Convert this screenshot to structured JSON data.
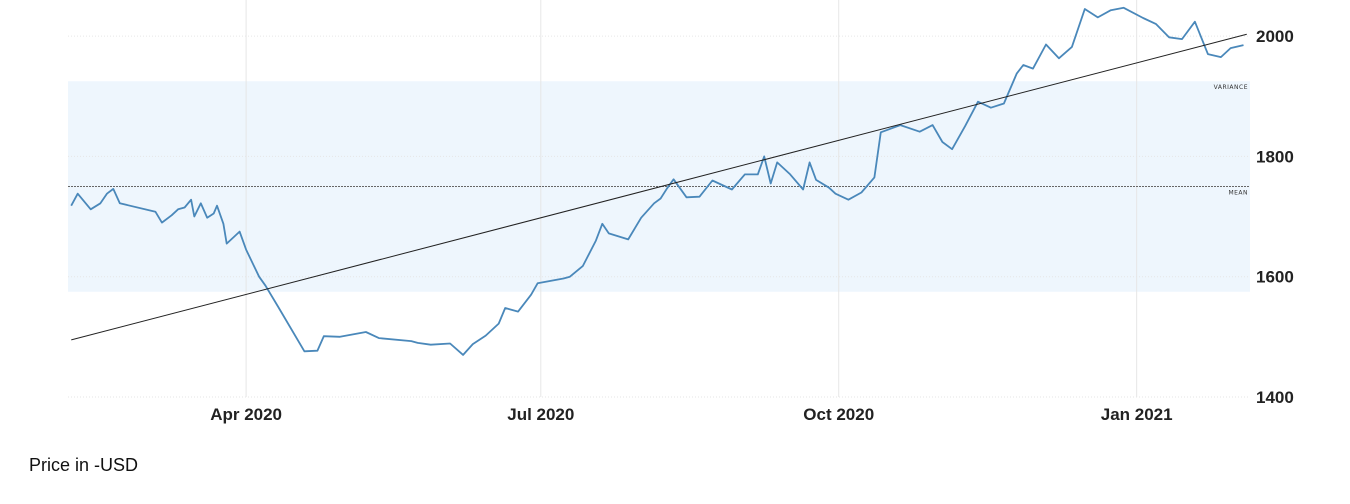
{
  "chart_data": {
    "type": "line",
    "units_note": "Price in -USD",
    "x_tick_labels": [
      "Apr 2020",
      "Jul 2020",
      "Oct 2020",
      "Jan 2021"
    ],
    "x_ticks": [
      "2020-04-01",
      "2020-07-01",
      "2020-10-01",
      "2021-01-01"
    ],
    "xlim": [
      "2020-02-06",
      "2021-02-05"
    ],
    "y_tick_labels": [
      "2000",
      "1800",
      "1600",
      "1400"
    ],
    "y_ticks": [
      2000,
      1800,
      1600,
      1400
    ],
    "ylim": [
      1400,
      2060
    ],
    "grid": true,
    "band": {
      "label": "VARIANCE",
      "from": 1575,
      "to": 1925
    },
    "mean_line": {
      "label": "MEAN",
      "value": 1750
    },
    "trend_line": {
      "x": [
        "2020-02-07",
        "2021-02-04"
      ],
      "y": [
        1495,
        2003
      ]
    },
    "colors": {
      "series": "#4a88ba",
      "band": "#eef6fd",
      "trend": "#222222",
      "grid": "#e6e6e6"
    },
    "series": [
      {
        "x": [
          "2020-02-07",
          "2020-02-09",
          "2020-02-13",
          "2020-02-16",
          "2020-02-18",
          "2020-02-20",
          "2020-02-22",
          "2020-03-04",
          "2020-03-06",
          "2020-03-09",
          "2020-03-11",
          "2020-03-13",
          "2020-03-15",
          "2020-03-16",
          "2020-03-18",
          "2020-03-20",
          "2020-03-22",
          "2020-03-23",
          "2020-03-25",
          "2020-03-26",
          "2020-03-30",
          "2020-04-01",
          "2020-04-05",
          "2020-04-07",
          "2020-04-11",
          "2020-04-19",
          "2020-04-23",
          "2020-04-25",
          "2020-04-30",
          "2020-05-08",
          "2020-05-12",
          "2020-05-22",
          "2020-05-24",
          "2020-05-28",
          "2020-06-03",
          "2020-06-07",
          "2020-06-10",
          "2020-06-14",
          "2020-06-18",
          "2020-06-20",
          "2020-06-24",
          "2020-06-28",
          "2020-06-30",
          "2020-07-08",
          "2020-07-10",
          "2020-07-14",
          "2020-07-18",
          "2020-07-20",
          "2020-07-22",
          "2020-07-28",
          "2020-08-01",
          "2020-08-05",
          "2020-08-07",
          "2020-08-09",
          "2020-08-11",
          "2020-08-15",
          "2020-08-19",
          "2020-08-23",
          "2020-08-29",
          "2020-09-02",
          "2020-09-06",
          "2020-09-08",
          "2020-09-10",
          "2020-09-12",
          "2020-09-16",
          "2020-09-20",
          "2020-09-22",
          "2020-09-24",
          "2020-09-28",
          "2020-09-30",
          "2020-10-04",
          "2020-10-08",
          "2020-10-12",
          "2020-10-14",
          "2020-10-20",
          "2020-10-26",
          "2020-10-30",
          "2020-11-02",
          "2020-11-05",
          "2020-11-09",
          "2020-11-13",
          "2020-11-17",
          "2020-11-21",
          "2020-11-25",
          "2020-11-27",
          "2020-11-30",
          "2020-12-04",
          "2020-12-08",
          "2020-12-12",
          "2020-12-16",
          "2020-12-20",
          "2020-12-24",
          "2020-12-28",
          "2021-01-03",
          "2021-01-07",
          "2021-01-11",
          "2021-01-15",
          "2021-01-19",
          "2021-01-23",
          "2021-01-27",
          "2021-01-30",
          "2021-02-03"
        ],
        "y": [
          1718,
          1738,
          1712,
          1722,
          1738,
          1746,
          1722,
          1708,
          1690,
          1702,
          1712,
          1715,
          1728,
          1700,
          1722,
          1698,
          1705,
          1718,
          1688,
          1655,
          1675,
          1645,
          1600,
          1585,
          1549,
          1476,
          1477,
          1501,
          1500,
          1508,
          1498,
          1493,
          1490,
          1487,
          1489,
          1470,
          1488,
          1502,
          1522,
          1548,
          1542,
          1570,
          1589,
          1597,
          1600,
          1618,
          1660,
          1688,
          1672,
          1662,
          1698,
          1722,
          1730,
          1747,
          1762,
          1732,
          1733,
          1760,
          1745,
          1770,
          1770,
          1800,
          1755,
          1790,
          1770,
          1745,
          1790,
          1761,
          1748,
          1738,
          1728,
          1740,
          1765,
          1840,
          1852,
          1841,
          1852,
          1824,
          1812,
          1850,
          1891,
          1881,
          1888,
          1938,
          1952,
          1946,
          1986,
          1963,
          1982,
          2045,
          2031,
          2043,
          2047,
          2030,
          2020,
          1998,
          1995,
          2024,
          1970,
          1965,
          1980,
          1985
        ]
      }
    ]
  }
}
